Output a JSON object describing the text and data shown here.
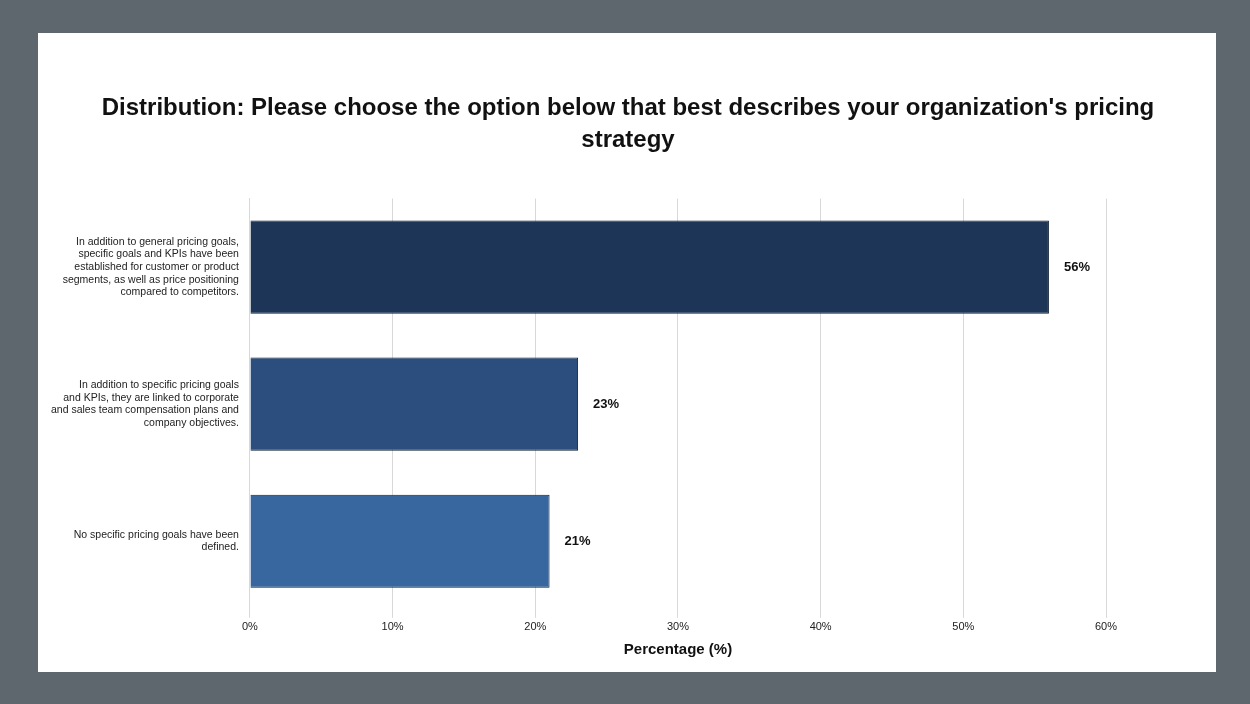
{
  "chart_data": {
    "type": "bar",
    "orientation": "horizontal",
    "title": "Distribution: Please choose the option below that best describes your organization's pricing strategy",
    "xlabel": "Percentage (%)",
    "categories": [
      "In addition to general pricing goals, specific goals and KPIs have been established for customer or product segments, as well as price positioning compared to competitors.",
      "In addition to specific pricing goals and KPIs, they are linked to corporate and sales team compensation plans and company objectives.",
      "No specific pricing goals have been defined."
    ],
    "values": [
      56,
      23,
      21
    ],
    "colors": [
      "#1d3658",
      "#2b4e7e",
      "#3867a0"
    ],
    "xlim": [
      0,
      60
    ],
    "xticks": [
      {
        "value": 0,
        "label": "0%"
      },
      {
        "value": 10,
        "label": "10%"
      },
      {
        "value": 20,
        "label": "20%"
      },
      {
        "value": 30,
        "label": "30%"
      },
      {
        "value": 40,
        "label": "40%"
      },
      {
        "value": 50,
        "label": "50%"
      },
      {
        "value": 60,
        "label": "60%"
      }
    ],
    "value_labels": [
      "56%",
      "23%",
      "21%"
    ],
    "grid": "x"
  }
}
